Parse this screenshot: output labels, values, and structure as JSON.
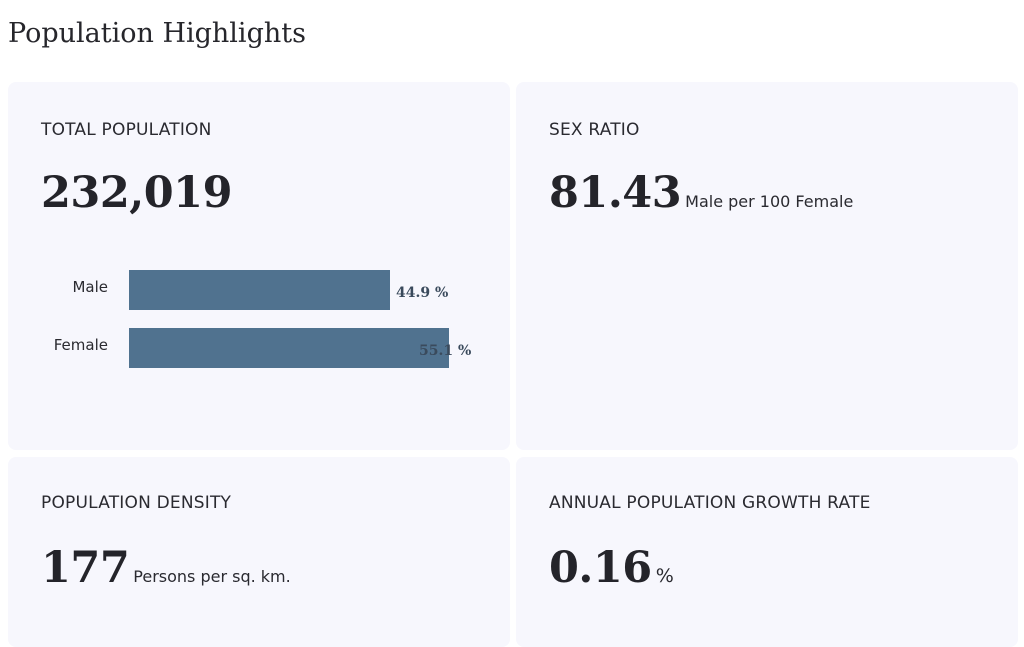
{
  "page": {
    "title": "Population Highlights"
  },
  "colors": {
    "card_bg": "#f7f7fd",
    "bar": "#50728f"
  },
  "cards": {
    "total_population": {
      "label": "TOTAL POPULATION",
      "value": "232,019",
      "bars": [
        {
          "label": "Male",
          "value_text": "44.9 %",
          "percent": 44.9
        },
        {
          "label": "Female",
          "value_text": "55.1 %",
          "percent": 55.1
        }
      ]
    },
    "sex_ratio": {
      "label": "SEX RATIO",
      "value": "81.43",
      "unit": "Male per 100 Female"
    },
    "population_density": {
      "label": "POPULATION DENSITY",
      "value": "177",
      "unit": "Persons per sq. km."
    },
    "growth_rate": {
      "label": "ANNUAL POPULATION GROWTH RATE",
      "value": "0.16",
      "unit": "%"
    }
  }
}
